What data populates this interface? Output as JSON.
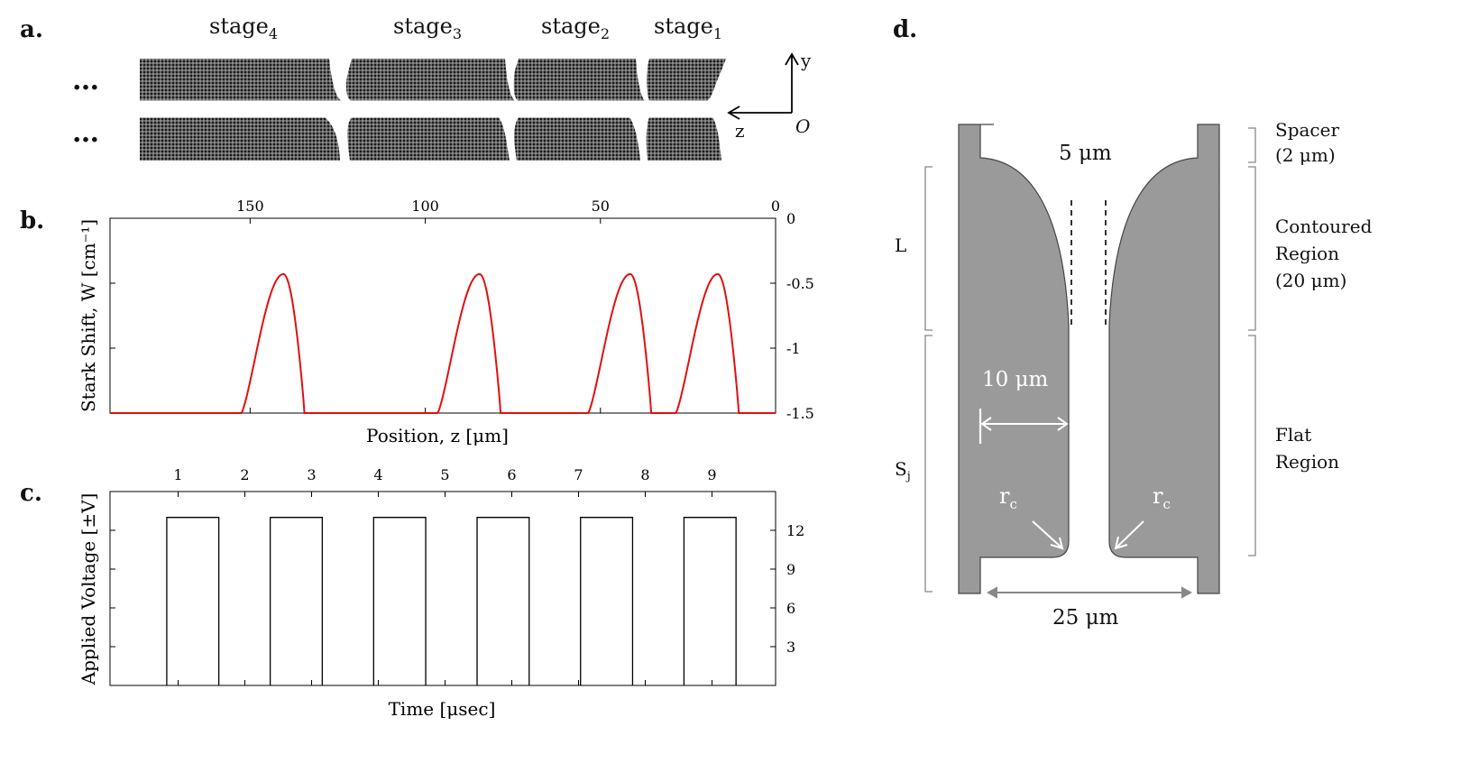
{
  "panel_labels": {
    "a": "a.",
    "b": "b.",
    "c": "c.",
    "d": "d."
  },
  "panel_a": {
    "stages": [
      {
        "text": "stage",
        "sub": "4"
      },
      {
        "text": "stage",
        "sub": "3"
      },
      {
        "text": "stage",
        "sub": "2"
      },
      {
        "text": "stage",
        "sub": "1"
      }
    ],
    "ellipsis": "…",
    "axis_y": "y",
    "axis_z": "z",
    "origin": "O"
  },
  "chart_data": [
    {
      "type": "line",
      "panel": "b",
      "xlabel": "Position, z [μm]",
      "ylabel": "Stark Shift, W [cm⁻¹]",
      "x_ticks": [
        "150",
        "100",
        "50",
        "0"
      ],
      "y_ticks": [
        "0",
        "-0.5",
        "-1",
        "-1.5"
      ],
      "xlim": [
        190,
        0
      ],
      "ylim": [
        -1.5,
        0
      ],
      "color": "#e01010",
      "peaks": [
        {
          "center": 140.5,
          "value": -0.43
        },
        {
          "center": 84.5,
          "value": -0.43
        },
        {
          "center": 41.5,
          "value": -0.43
        },
        {
          "center": 16.5,
          "value": -0.43
        }
      ],
      "baseline": -1.5
    },
    {
      "type": "line",
      "panel": "c",
      "xlabel": "Time [μsec]",
      "ylabel": "Applied Voltage [±V]",
      "x_ticks": [
        "1",
        "2",
        "3",
        "4",
        "5",
        "6",
        "7",
        "8",
        "9"
      ],
      "y_ticks": [
        "3",
        "6",
        "9",
        "12"
      ],
      "ylim": [
        0,
        15
      ],
      "pulse_high": 13,
      "pulses": [
        [
          0.83,
          1.61
        ],
        [
          2.38,
          3.16
        ],
        [
          3.93,
          4.71
        ],
        [
          5.48,
          6.26
        ],
        [
          7.03,
          7.81
        ],
        [
          8.58,
          9.36
        ]
      ]
    }
  ],
  "panel_d": {
    "spacer": "Spacer",
    "spacer_dim": "(2 μm)",
    "contoured_1": "Contoured",
    "contoured_2": "Region",
    "contoured_3": "(20 μm)",
    "flat_1": "Flat",
    "flat_2": "Region",
    "gap_top": "5 μm",
    "half_width": "10 μm",
    "total_width": "25 μm",
    "L": "L",
    "S": "S",
    "S_sub": "j",
    "rc": "r",
    "rc_sub": "c",
    "fill": "#9a9a9a"
  }
}
